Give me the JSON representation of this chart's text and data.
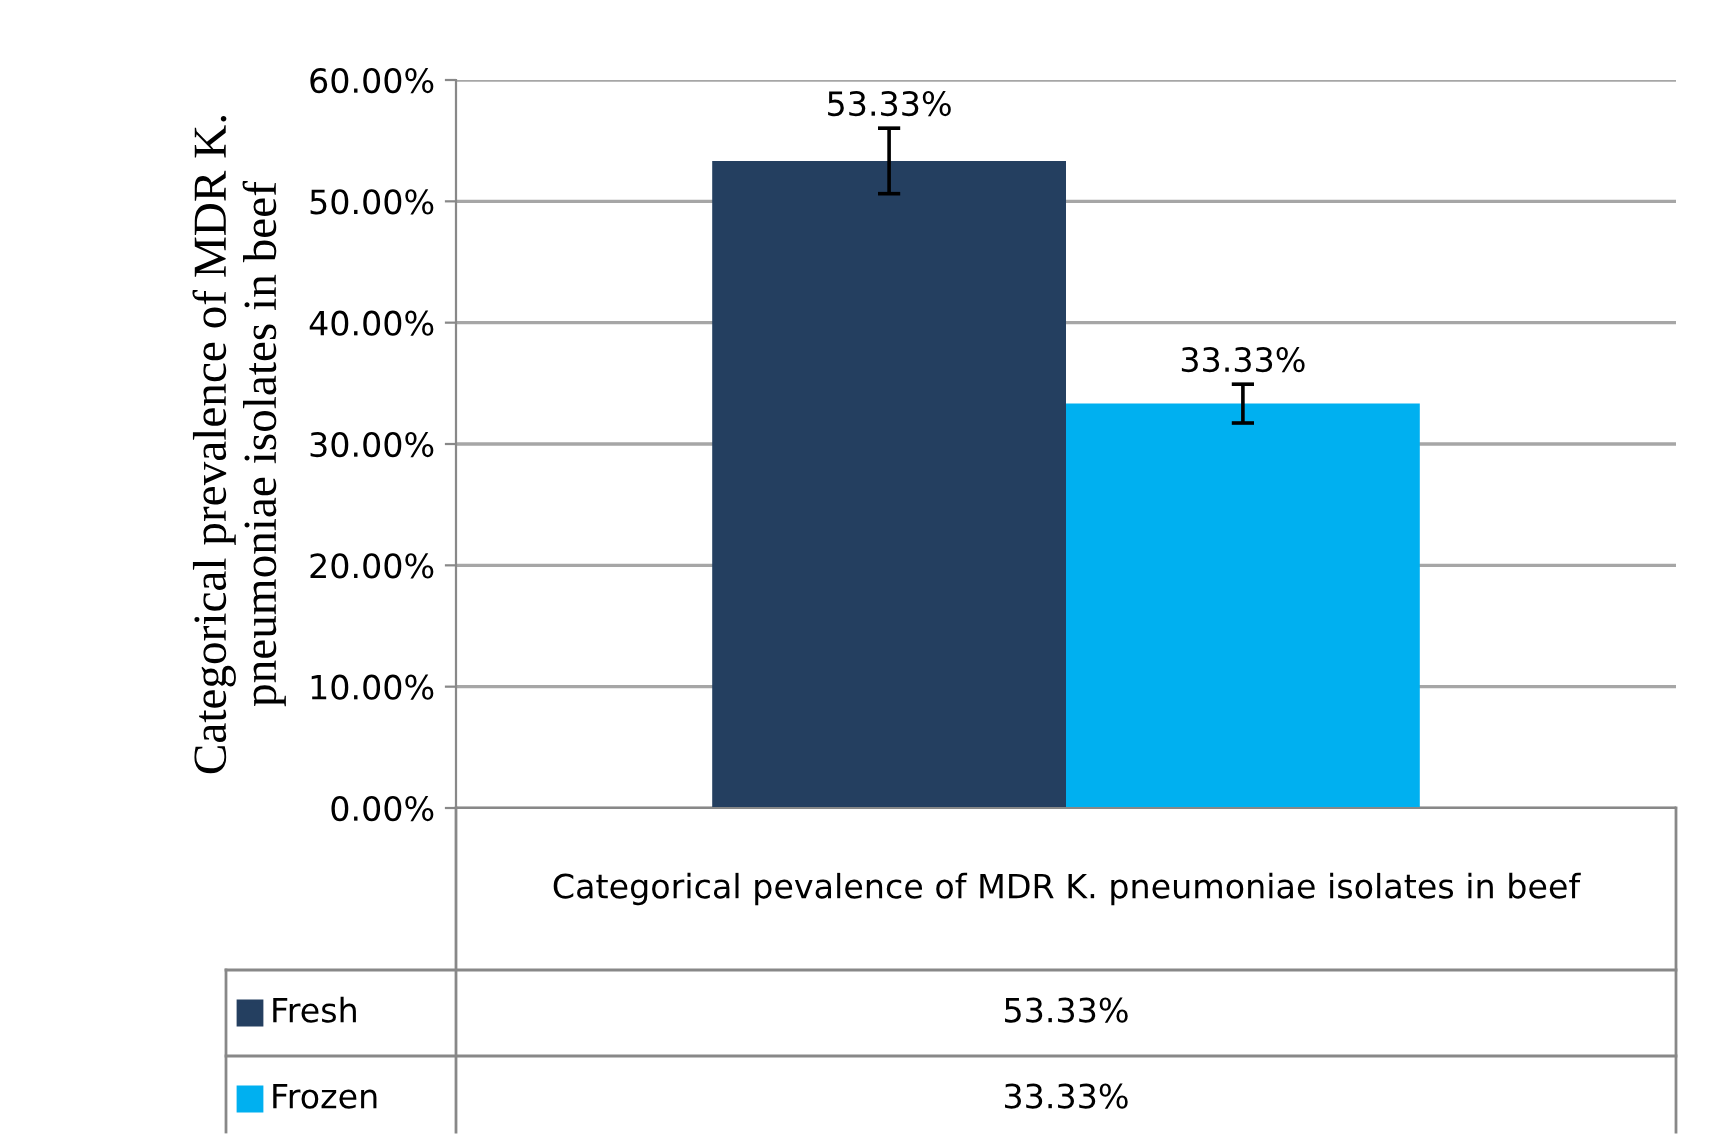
{
  "chart_data": {
    "type": "bar",
    "ylabel": "Categorical prevalence of MDR K. pneumoniae isolates in beef",
    "categories": [
      "Categorical pevalence of MDR K. pneumoniae isolates in beef"
    ],
    "series": [
      {
        "name": "Fresh",
        "color": "#243f60",
        "values": [
          53.33
        ],
        "errors": [
          2.7
        ],
        "value_labels": [
          "53.33%"
        ]
      },
      {
        "name": "Frozen",
        "color": "#00b0f0",
        "values": [
          33.33
        ],
        "errors": [
          1.6
        ],
        "value_labels": [
          "33.33%"
        ]
      }
    ],
    "ylim": [
      0,
      60
    ],
    "yticks": [
      {
        "value": 0,
        "label": "0.00%"
      },
      {
        "value": 10,
        "label": "10.00%"
      },
      {
        "value": 20,
        "label": "20.00%"
      },
      {
        "value": 30,
        "label": "30.00%"
      },
      {
        "value": 40,
        "label": "40.00%"
      },
      {
        "value": 50,
        "label": "50.00%"
      },
      {
        "value": 60,
        "label": "60.00%"
      }
    ],
    "grid": "y",
    "legend": "bottom",
    "data_labels": true
  }
}
